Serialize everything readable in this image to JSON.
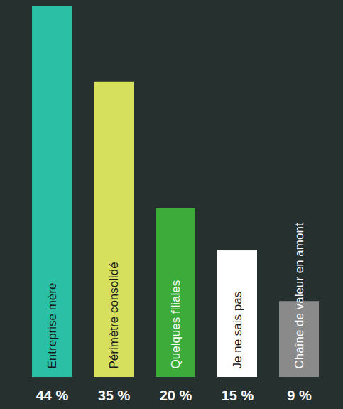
{
  "chart_data": {
    "type": "bar",
    "categories": [
      "Entreprise mère",
      "Périmètre consolidé",
      "Quelques filiales",
      "Je ne sais pas",
      "Chaîne de valeur en amont"
    ],
    "values": [
      44,
      35,
      20,
      15,
      9
    ],
    "value_labels": [
      "44 %",
      "35 %",
      "20 %",
      "15 %",
      "9 %"
    ],
    "colors": [
      "#2bbfa6",
      "#d6e05c",
      "#3dab3a",
      "#ffffff",
      "#8a8a8a"
    ],
    "ylim": [
      0,
      44
    ],
    "data_labels": true,
    "tick_labels": false,
    "grid": false
  }
}
